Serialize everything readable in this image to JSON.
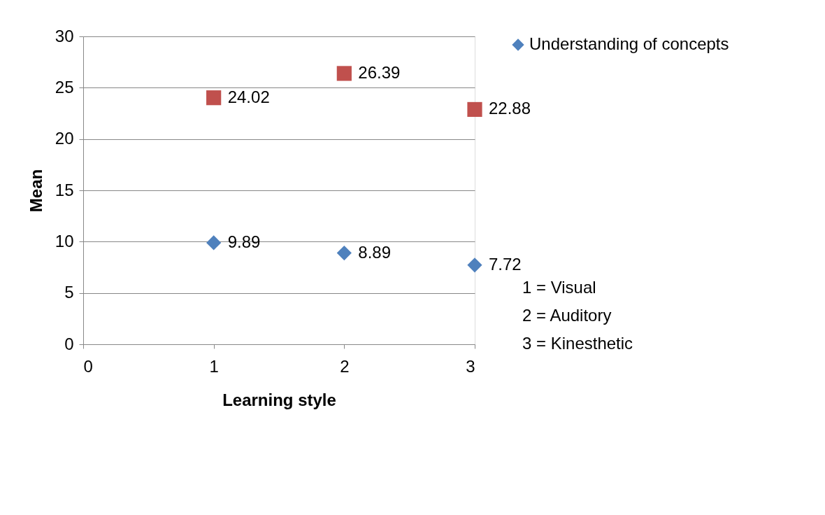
{
  "chart_data": {
    "type": "scatter",
    "xlabel": "Learning style",
    "ylabel": "Mean",
    "x": [
      1,
      2,
      3
    ],
    "series": [
      {
        "name": "Understanding of concepts",
        "color": "#4f81bd",
        "marker": "diamond",
        "values": [
          9.89,
          8.89,
          7.72
        ]
      },
      {
        "color": "#c0504d",
        "marker": "square",
        "values": [
          24.02,
          26.39,
          22.88
        ]
      }
    ],
    "xlim": [
      0,
      3
    ],
    "xticks": [
      0,
      1,
      2,
      3
    ],
    "ylim": [
      0,
      30
    ],
    "yticks": [
      0,
      5,
      10,
      15,
      20,
      25,
      30
    ],
    "grid": "y",
    "legend": "right",
    "data_labels": true,
    "annotations": [
      "1  = Visual",
      "2  = Auditory",
      "3  = Kinesthetic"
    ]
  }
}
